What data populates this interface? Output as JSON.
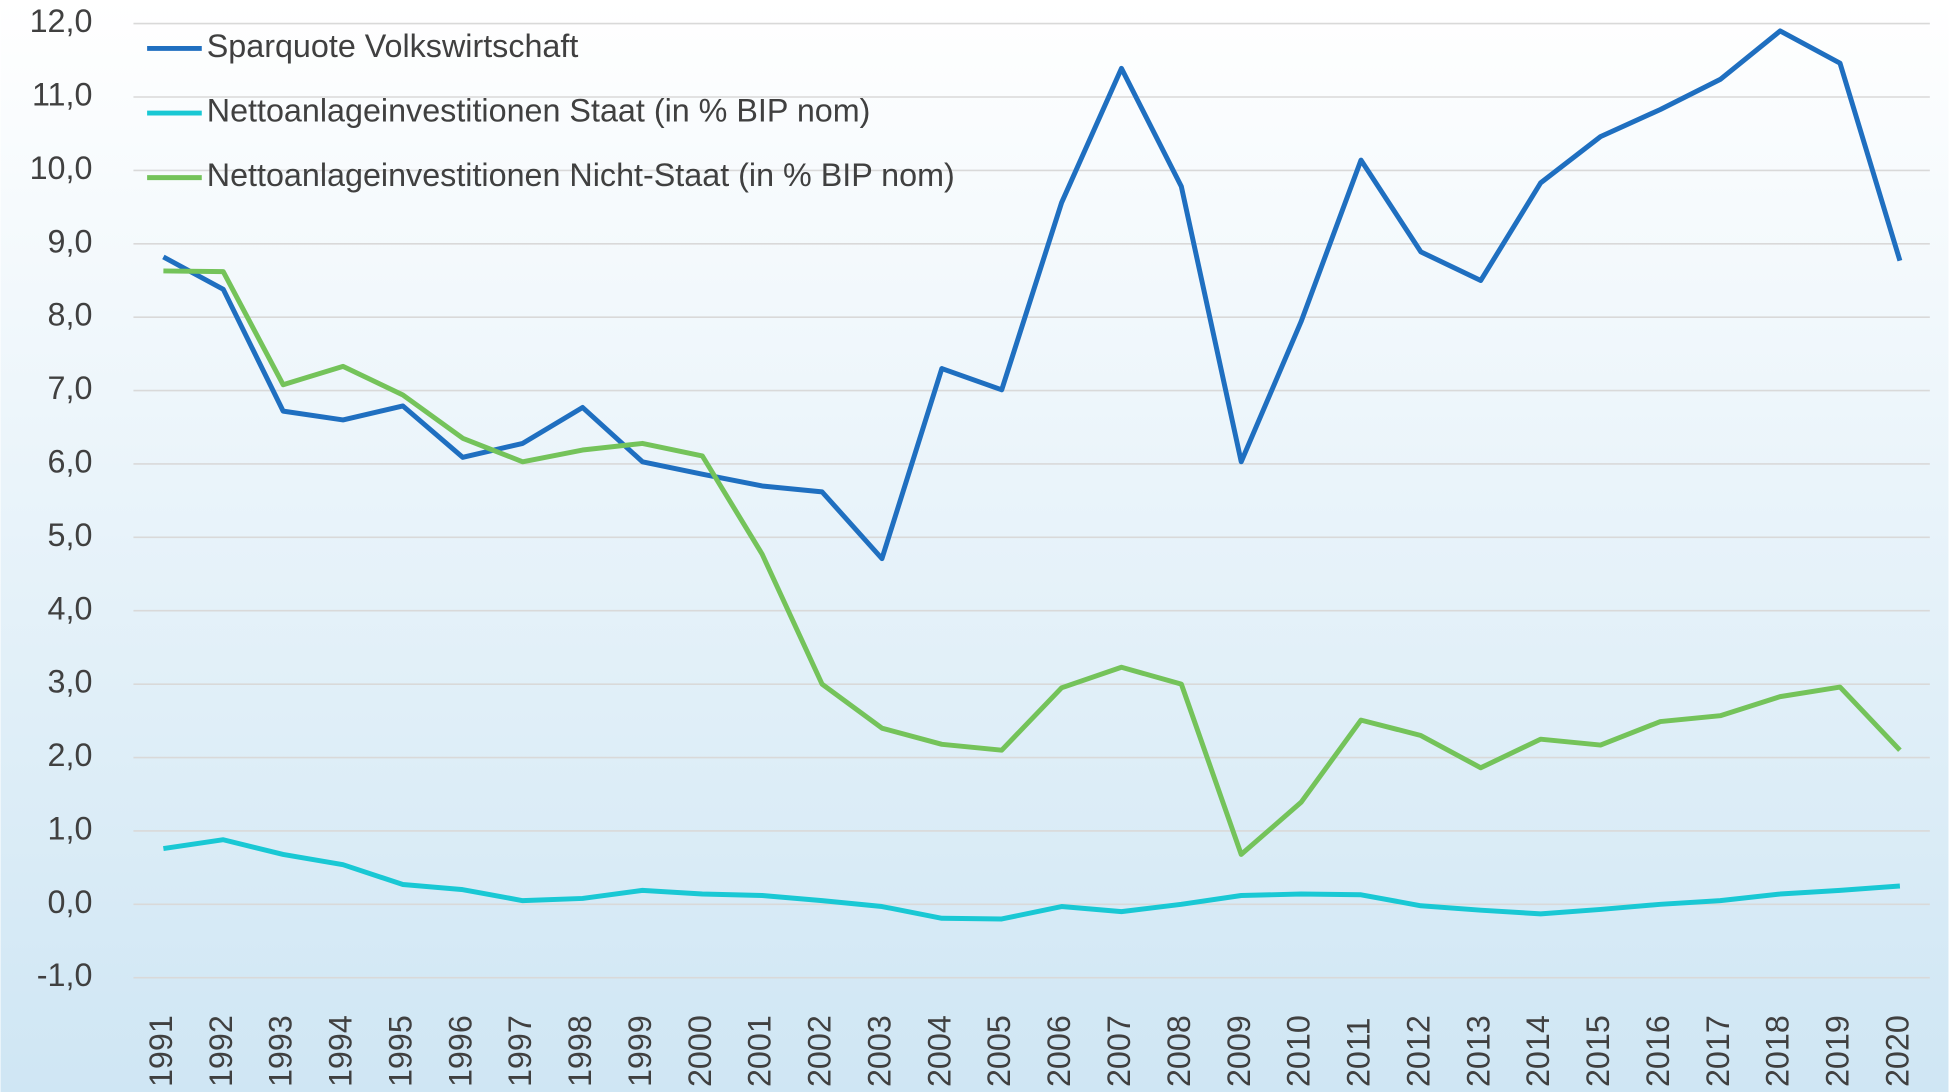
{
  "chart_data": {
    "type": "line",
    "categories": [
      "1991",
      "1992",
      "1993",
      "1994",
      "1995",
      "1996",
      "1997",
      "1998",
      "1999",
      "2000",
      "2001",
      "2002",
      "2003",
      "2004",
      "2005",
      "2006",
      "2007",
      "2008",
      "2009",
      "2010",
      "2011",
      "2012",
      "2013",
      "2014",
      "2015",
      "2016",
      "2017",
      "2018",
      "2019",
      "2020"
    ],
    "series": [
      {
        "name": "Sparquote Volkswirtschaft",
        "color": "#1f6fc0",
        "values": [
          8.82,
          8.38,
          6.72,
          6.6,
          6.79,
          6.09,
          6.28,
          6.77,
          6.03,
          5.86,
          5.7,
          5.62,
          4.71,
          7.3,
          7.01,
          9.56,
          11.39,
          9.78,
          6.03,
          7.94,
          10.14,
          8.89,
          8.5,
          9.83,
          10.46,
          10.83,
          11.24,
          11.9,
          11.46,
          8.77
        ]
      },
      {
        "name": "Nettoanlageinvestitionen Staat (in % BIP nom)",
        "color": "#19c8d4",
        "values": [
          0.76,
          0.88,
          0.68,
          0.54,
          0.27,
          0.2,
          0.05,
          0.08,
          0.19,
          0.14,
          0.12,
          0.05,
          -0.03,
          -0.19,
          -0.2,
          -0.03,
          -0.1,
          0.0,
          0.12,
          0.14,
          0.13,
          -0.02,
          -0.08,
          -0.13,
          -0.07,
          0.0,
          0.05,
          0.14,
          0.19,
          0.25
        ]
      },
      {
        "name": "Nettoanlageinvestitionen Nicht-Staat (in % BIP nom)",
        "color": "#74c35a",
        "values": [
          8.63,
          8.62,
          7.08,
          7.33,
          6.94,
          6.35,
          6.03,
          6.19,
          6.28,
          6.11,
          4.77,
          3.0,
          2.4,
          2.18,
          2.1,
          2.95,
          3.23,
          3.0,
          0.68,
          1.39,
          2.51,
          2.3,
          1.86,
          2.25,
          2.17,
          2.49,
          2.57,
          2.83,
          2.96,
          2.1
        ]
      }
    ],
    "ylim": [
      -1,
      12
    ],
    "yticks": [
      {
        "value": -1,
        "label": "-1,0"
      },
      {
        "value": 0,
        "label": "0,0"
      },
      {
        "value": 1,
        "label": "1,0"
      },
      {
        "value": 2,
        "label": "2,0"
      },
      {
        "value": 3,
        "label": "3,0"
      },
      {
        "value": 4,
        "label": "4,0"
      },
      {
        "value": 5,
        "label": "5,0"
      },
      {
        "value": 6,
        "label": "6,0"
      },
      {
        "value": 7,
        "label": "7,0"
      },
      {
        "value": 8,
        "label": "8,0"
      },
      {
        "value": 9,
        "label": "9,0"
      },
      {
        "value": 10,
        "label": "10,0"
      },
      {
        "value": 11,
        "label": "11,0"
      },
      {
        "value": 12,
        "label": "12,0"
      }
    ],
    "grid": true,
    "legend": "top-left"
  }
}
